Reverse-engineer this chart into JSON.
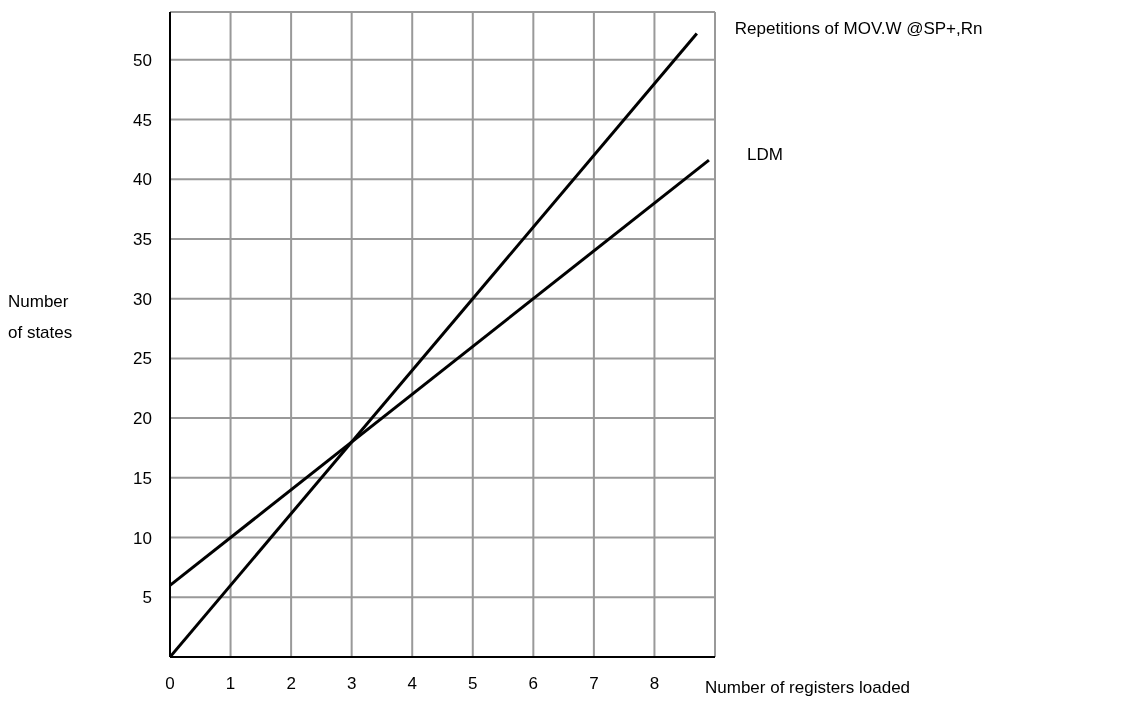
{
  "chart_data": {
    "type": "line",
    "xlabel": "Number of registers loaded",
    "ylabel": "Number of states",
    "xlim": [
      0,
      9
    ],
    "xticks": [
      0,
      1,
      2,
      3,
      4,
      5,
      6,
      7,
      8
    ],
    "ylim": [
      0,
      54
    ],
    "yticks": [
      5,
      10,
      15,
      20,
      25,
      30,
      35,
      40,
      45,
      50
    ],
    "grid": true,
    "marker": "none",
    "line_style": "solid",
    "series": [
      {
        "name": "Repetitions of MOV.W @SP+,Rn",
        "color": "#000000",
        "x": [
          0,
          8.7
        ],
        "values": [
          0,
          52.2
        ]
      },
      {
        "name": "LDM",
        "color": "#000000",
        "x": [
          0,
          8.9
        ],
        "values": [
          6,
          41.6
        ]
      }
    ]
  }
}
